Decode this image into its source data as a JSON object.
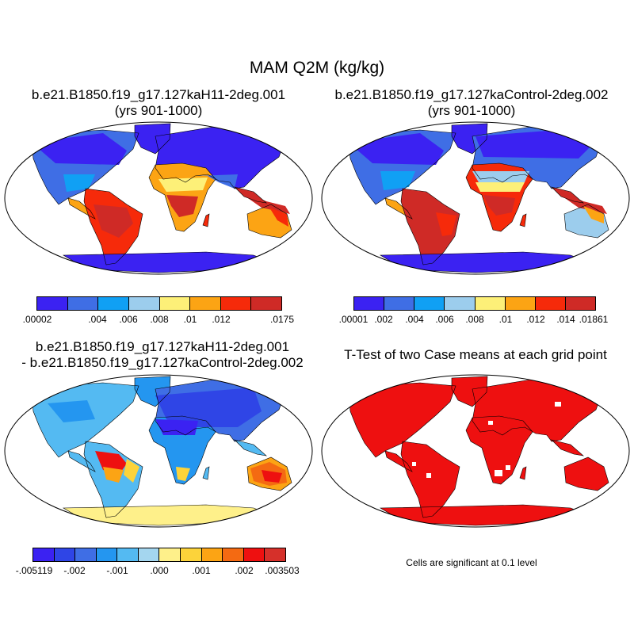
{
  "figure": {
    "title": "MAM Q2M (kg/kg)",
    "significance_note": "Cells are significant at 0.1 level"
  },
  "panels": [
    {
      "id": "case1",
      "title_line1": "b.e21.B1850.f19_g17.127kaH11-2deg.001",
      "title_line2": "(yrs 901-1000)",
      "colorbar": {
        "colors": [
          "#3b22f2",
          "#3f6ee5",
          "#10a0f4",
          "#9ccded",
          "#fdf078",
          "#fca414",
          "#f62a0a",
          "#cf2a26"
        ],
        "labels": [
          ".00002",
          ".004",
          ".006",
          ".008",
          ".01",
          ".012",
          ".0175"
        ]
      }
    },
    {
      "id": "case2",
      "title_line1": "b.e21.B1850.f19_g17.127kaControl-2deg.002",
      "title_line2": "(yrs 901-1000)",
      "colorbar": {
        "colors": [
          "#3b22f2",
          "#3f6ee5",
          "#10a0f4",
          "#9ccded",
          "#fdf078",
          "#fca414",
          "#f62a0a",
          "#cf2a26"
        ],
        "labels": [
          ".00001",
          ".002",
          ".004",
          ".006",
          ".008",
          ".01",
          ".012",
          ".014",
          ".01861"
        ]
      }
    },
    {
      "id": "difference",
      "title_line1": "b.e21.B1850.f19_g17.127kaH11-2deg.001",
      "title_line2": "- b.e21.B1850.f19_g17.127kaControl-2deg.002",
      "colorbar": {
        "colors": [
          "#3b22f2",
          "#2f45e6",
          "#3f6ee5",
          "#2496f0",
          "#54baf2",
          "#a4d6ef",
          "#fef08a",
          "#fcd33a",
          "#fca414",
          "#f46a12",
          "#ee1010",
          "#d6302a"
        ],
        "labels": [
          "-.005119",
          "-.002",
          "-.001",
          ".000",
          ".001",
          ".002",
          ".003503"
        ]
      }
    },
    {
      "id": "ttest",
      "title_line1": "T-Test of two Case means at each grid point",
      "significance_color": "#ee1010"
    }
  ],
  "colors": {
    "ocean": "#ffffff",
    "coast": "#000000"
  }
}
